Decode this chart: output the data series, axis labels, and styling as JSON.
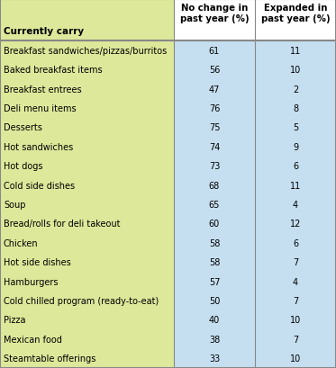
{
  "header_col": "Currently carry",
  "header_col2": "No change in\npast year (%)",
  "header_col3": "Expanded in\npast year (%)",
  "rows": [
    [
      "Breakfast sandwiches/pizzas/burritos",
      61,
      11
    ],
    [
      "Baked breakfast items",
      56,
      10
    ],
    [
      "Breakfast entrees",
      47,
      2
    ],
    [
      "Deli menu items",
      76,
      8
    ],
    [
      "Desserts",
      75,
      5
    ],
    [
      "Hot sandwiches",
      74,
      9
    ],
    [
      "Hot dogs",
      73,
      6
    ],
    [
      "Cold side dishes",
      68,
      11
    ],
    [
      "Soup",
      65,
      4
    ],
    [
      "Bread/rolls for deli takeout",
      60,
      12
    ],
    [
      "Chicken",
      58,
      6
    ],
    [
      "Hot side dishes",
      58,
      7
    ],
    [
      "Hamburgers",
      57,
      4
    ],
    [
      "Cold chilled program (ready-to-eat)",
      50,
      7
    ],
    [
      "Pizza",
      40,
      10
    ],
    [
      "Mexican food",
      38,
      7
    ],
    [
      "Steamtable offerings",
      33,
      10
    ]
  ],
  "col1_bg": "#dde89a",
  "col23_bg": "#c5dff0",
  "header_col1_bg": "#dde89a",
  "header_col23_bg": "#ffffff",
  "border_color": "#888888",
  "text_color": "#000000",
  "header_text_color": "#000000",
  "fig_width": 3.73,
  "fig_height": 4.1,
  "dpi": 100
}
